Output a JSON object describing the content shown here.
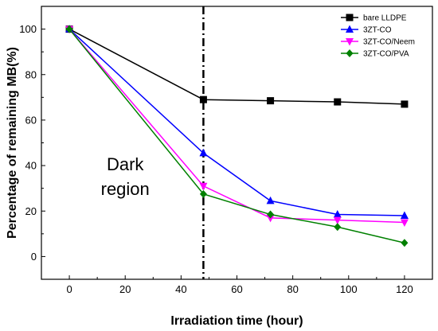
{
  "chart_data": {
    "type": "line",
    "title": "",
    "xlabel": "Irradiation time (hour)",
    "ylabel": "Percentage of remaining MB(%)",
    "xlim": [
      -10,
      130
    ],
    "ylim": [
      -10,
      110
    ],
    "xticks": [
      0,
      20,
      40,
      60,
      80,
      100,
      120
    ],
    "yticks": [
      0,
      20,
      40,
      60,
      80,
      100
    ],
    "grid": false,
    "legend_position": "top-right",
    "annotation": {
      "text_lines": [
        "Dark",
        "region"
      ],
      "divider_x": 48
    },
    "series": [
      {
        "name": "bare LLDPE",
        "color": "#000000",
        "marker": "square",
        "x": [
          0,
          48,
          72,
          96,
          120
        ],
        "y": [
          100,
          69,
          68.5,
          68,
          67
        ]
      },
      {
        "name": "3ZT-CO",
        "color": "#0000ff",
        "marker": "triangle-up",
        "x": [
          0,
          48,
          72,
          96,
          120
        ],
        "y": [
          100,
          45.5,
          24.5,
          18.5,
          18
        ]
      },
      {
        "name": "3ZT-CO/Neem",
        "color": "#ff00ff",
        "marker": "triangle-down",
        "x": [
          0,
          48,
          72,
          96,
          120
        ],
        "y": [
          100,
          31,
          17,
          16,
          15
        ]
      },
      {
        "name": "3ZT-CO/PVA",
        "color": "#008000",
        "marker": "diamond",
        "x": [
          0,
          48,
          72,
          96,
          120
        ],
        "y": [
          100,
          27.5,
          18.5,
          13,
          6
        ]
      }
    ]
  }
}
